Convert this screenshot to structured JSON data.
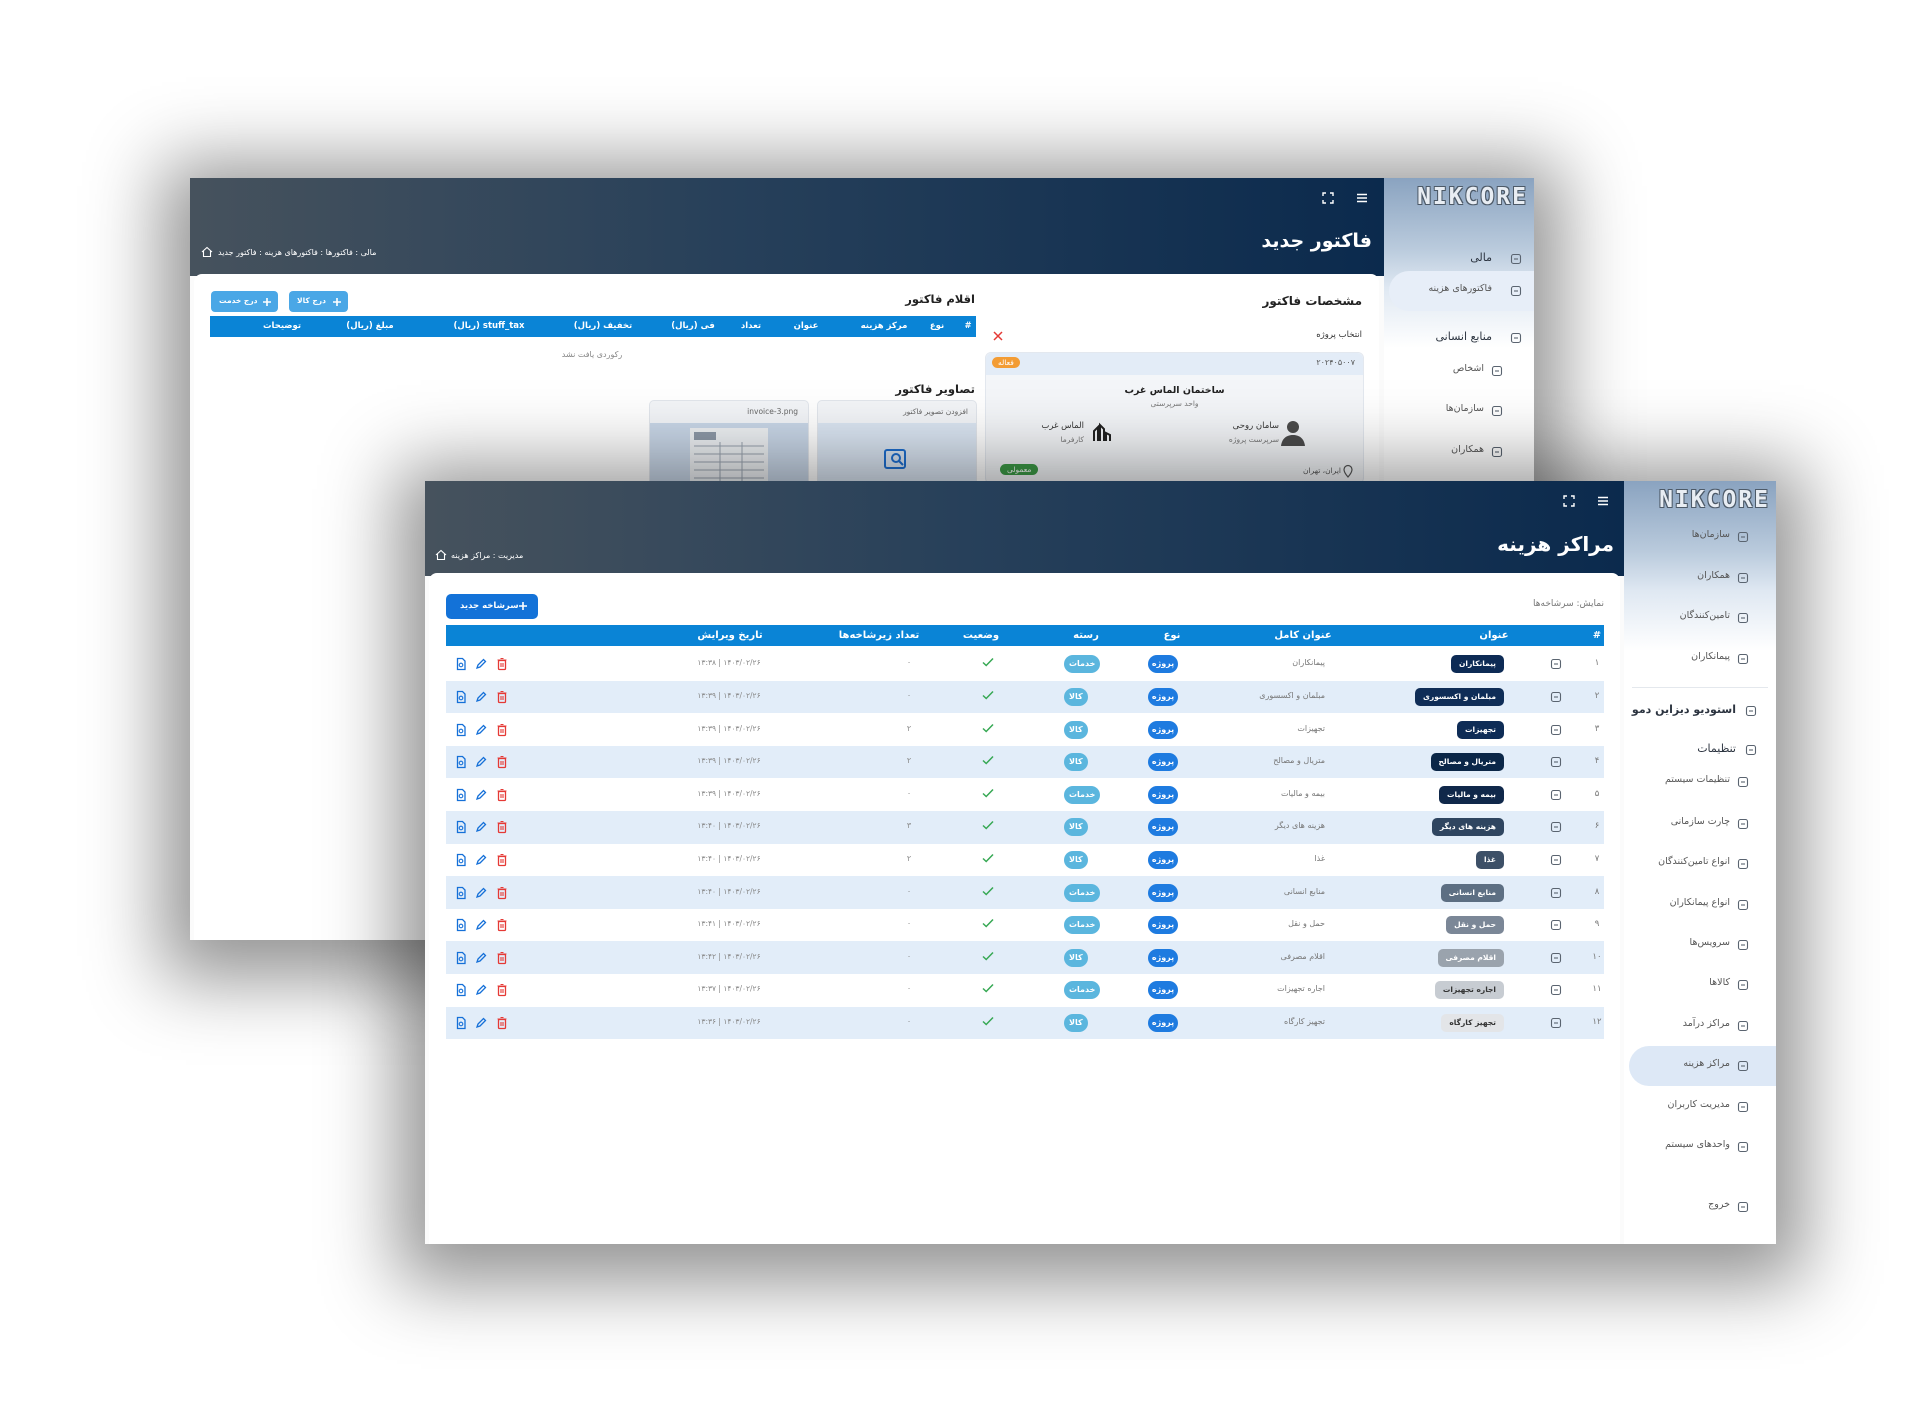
{
  "back_window": {
    "logo": "NIKCORE",
    "header": {
      "title": "فاکتور جدید",
      "breadcrumb": "مالی : فاکتورها : فاکتورهای هزینه : فاکتور جدید"
    },
    "sidebar": [
      {
        "label": "مالی",
        "bold": true
      },
      {
        "label": "فاکتورهای هزینه",
        "active": true
      },
      {
        "label": "منابع انسانی",
        "bold": true
      },
      {
        "label": "اشخاص"
      },
      {
        "label": "سازمان‌ها"
      },
      {
        "label": "همکاران"
      }
    ],
    "invoice_details": {
      "title": "مشخصات فاکتور",
      "select_project_label": "انتخاب پروژه",
      "project": {
        "code": "۲۰۲۴۰۵۰۰۷",
        "status": "فعاله",
        "name": "ساختمان الماس غرب",
        "unit": "واحد سرپرستی",
        "manager_name": "سامان روحی",
        "manager_role": "سرپرست پروژه",
        "client_name": "الماس غرب",
        "client_role": "کارفرما",
        "location": "ایران، تهران",
        "priority": "معمولی"
      }
    },
    "items": {
      "title": "اقلام فاکتور",
      "buttons": [
        "درج خدمت",
        "درج کالا"
      ],
      "columns": [
        "#",
        "نوع",
        "مرکز هزینه",
        "عنوان",
        "تعداد",
        "فی (ریال)",
        "تخفیف (ریال)",
        "stuff_tax (ریال)",
        "مبلغ (ریال)",
        "توضیحات"
      ],
      "empty": "رکوردی یافت نشد"
    },
    "images": {
      "title": "تصاویر فاکتور",
      "add_label": "افزودن تصویر فاکتور",
      "file_name": "invoice-3.png"
    }
  },
  "front_window": {
    "logo": "NIKCORE",
    "header": {
      "title": "مراکز هزینه",
      "breadcrumb": "مدیریت : مراکز هزینه"
    },
    "sidebar": [
      {
        "label": "سازمان‌ها"
      },
      {
        "label": "همکاران"
      },
      {
        "label": "تامین‌کنندگان"
      },
      {
        "label": "پیمانکاران"
      },
      {
        "label": "استودیو دیزاین دمو",
        "bold": true
      },
      {
        "label": "تنظیمات",
        "bold": true
      },
      {
        "label": "تنظیمات سیستم"
      },
      {
        "label": "چارت سازمانی"
      },
      {
        "label": "انواع تامین‌کنندگان"
      },
      {
        "label": "انواع پیمانکاران"
      },
      {
        "label": "سرویس‌ها"
      },
      {
        "label": "کالاها"
      },
      {
        "label": "مراکز درآمد"
      },
      {
        "label": "مراکز هزینه",
        "active": true
      },
      {
        "label": "مدیریت کاربران"
      },
      {
        "label": "واحدهای سیستم"
      },
      {
        "label": "خروج"
      }
    ],
    "new_button": "سرشاخه جدید",
    "view_label": "نمایش: سرشاخه‌ها",
    "columns": [
      "#",
      "عنوان",
      "عنوان کامل",
      "نوع",
      "رسته",
      "وضعیت",
      "تعداد زیرشاخه‌ها",
      "تاریخ ویرایش"
    ],
    "rows": [
      {
        "index": "۱",
        "title": "پیمانکاران",
        "full_title": "پیمانکاران",
        "type": "پروژه",
        "category": "خدمات",
        "children": "۰",
        "edited": "۱۴۰۳/۰۲/۲۶ | ۱۳:۳۸",
        "color": "#0d2b55"
      },
      {
        "index": "۲",
        "title": "مبلمان و اکسسوری",
        "full_title": "مبلمان و اکسسوری",
        "type": "پروژه",
        "category": "کالا",
        "children": "۰",
        "edited": "۱۴۰۳/۰۲/۲۶ | ۱۳:۳۹",
        "color": "#0f2d57"
      },
      {
        "index": "۳",
        "title": "تجهیزات",
        "full_title": "تجهیزات",
        "type": "پروژه",
        "category": "کالا",
        "children": "۲",
        "edited": "۱۴۰۳/۰۲/۲۶ | ۱۳:۳۹",
        "color": "#0e2c56"
      },
      {
        "index": "۴",
        "title": "متریال و مصالح",
        "full_title": "متریال و مصالح",
        "type": "پروژه",
        "category": "کالا",
        "children": "۲",
        "edited": "۱۴۰۳/۰۲/۲۶ | ۱۳:۳۹",
        "color": "#0b2748"
      },
      {
        "index": "۵",
        "title": "بیمه و مالیات",
        "full_title": "بیمه و مالیات",
        "type": "پروژه",
        "category": "خدمات",
        "children": "۰",
        "edited": "۱۴۰۳/۰۲/۲۶ | ۱۳:۳۹",
        "color": "#10284a"
      },
      {
        "index": "۶",
        "title": "هزینه های دیگر",
        "full_title": "هزینه های دیگر",
        "type": "پروژه",
        "category": "کالا",
        "children": "۳",
        "edited": "۱۴۰۳/۰۲/۲۶ | ۱۳:۴۰",
        "color": "#2f4560"
      },
      {
        "index": "۷",
        "title": "غذا",
        "full_title": "غذا",
        "type": "پروژه",
        "category": "کالا",
        "children": "۲",
        "edited": "۱۴۰۳/۰۲/۲۶ | ۱۳:۴۰",
        "color": "#3d5067"
      },
      {
        "index": "۸",
        "title": "منابع انسانی",
        "full_title": "منابع انسانی",
        "type": "پروژه",
        "category": "خدمات",
        "children": "۰",
        "edited": "۱۴۰۳/۰۲/۲۶ | ۱۳:۴۰",
        "color": "#5d6f83"
      },
      {
        "index": "۹",
        "title": "حمل و نقل",
        "full_title": "حمل و نقل",
        "type": "پروژه",
        "category": "خدمات",
        "children": "۰",
        "edited": "۱۴۰۳/۰۲/۲۶ | ۱۳:۴۱",
        "color": "#7b8797"
      },
      {
        "index": "۱۰",
        "title": "اقلام مصرفی",
        "full_title": "اقلام مصرفی",
        "type": "پروژه",
        "category": "کالا",
        "children": "۰",
        "edited": "۱۴۰۳/۰۲/۲۶ | ۱۳:۴۲",
        "color": "#9aa3ad"
      },
      {
        "index": "۱۱",
        "title": "اجاره تجهیزات",
        "full_title": "اجاره تجهیزات",
        "type": "پروژه",
        "category": "خدمات",
        "children": "۰",
        "edited": "۱۴۰۳/۰۲/۲۶ | ۱۳:۳۷",
        "color": "#c7ccd2"
      },
      {
        "index": "۱۲",
        "title": "تجهیز کارگاه",
        "full_title": "تجهیز کارگاه",
        "type": "پروژه",
        "category": "کالا",
        "children": "۰",
        "edited": "۱۴۰۳/۰۲/۲۶ | ۱۳:۳۶",
        "color": "#e3e5e8"
      }
    ]
  }
}
